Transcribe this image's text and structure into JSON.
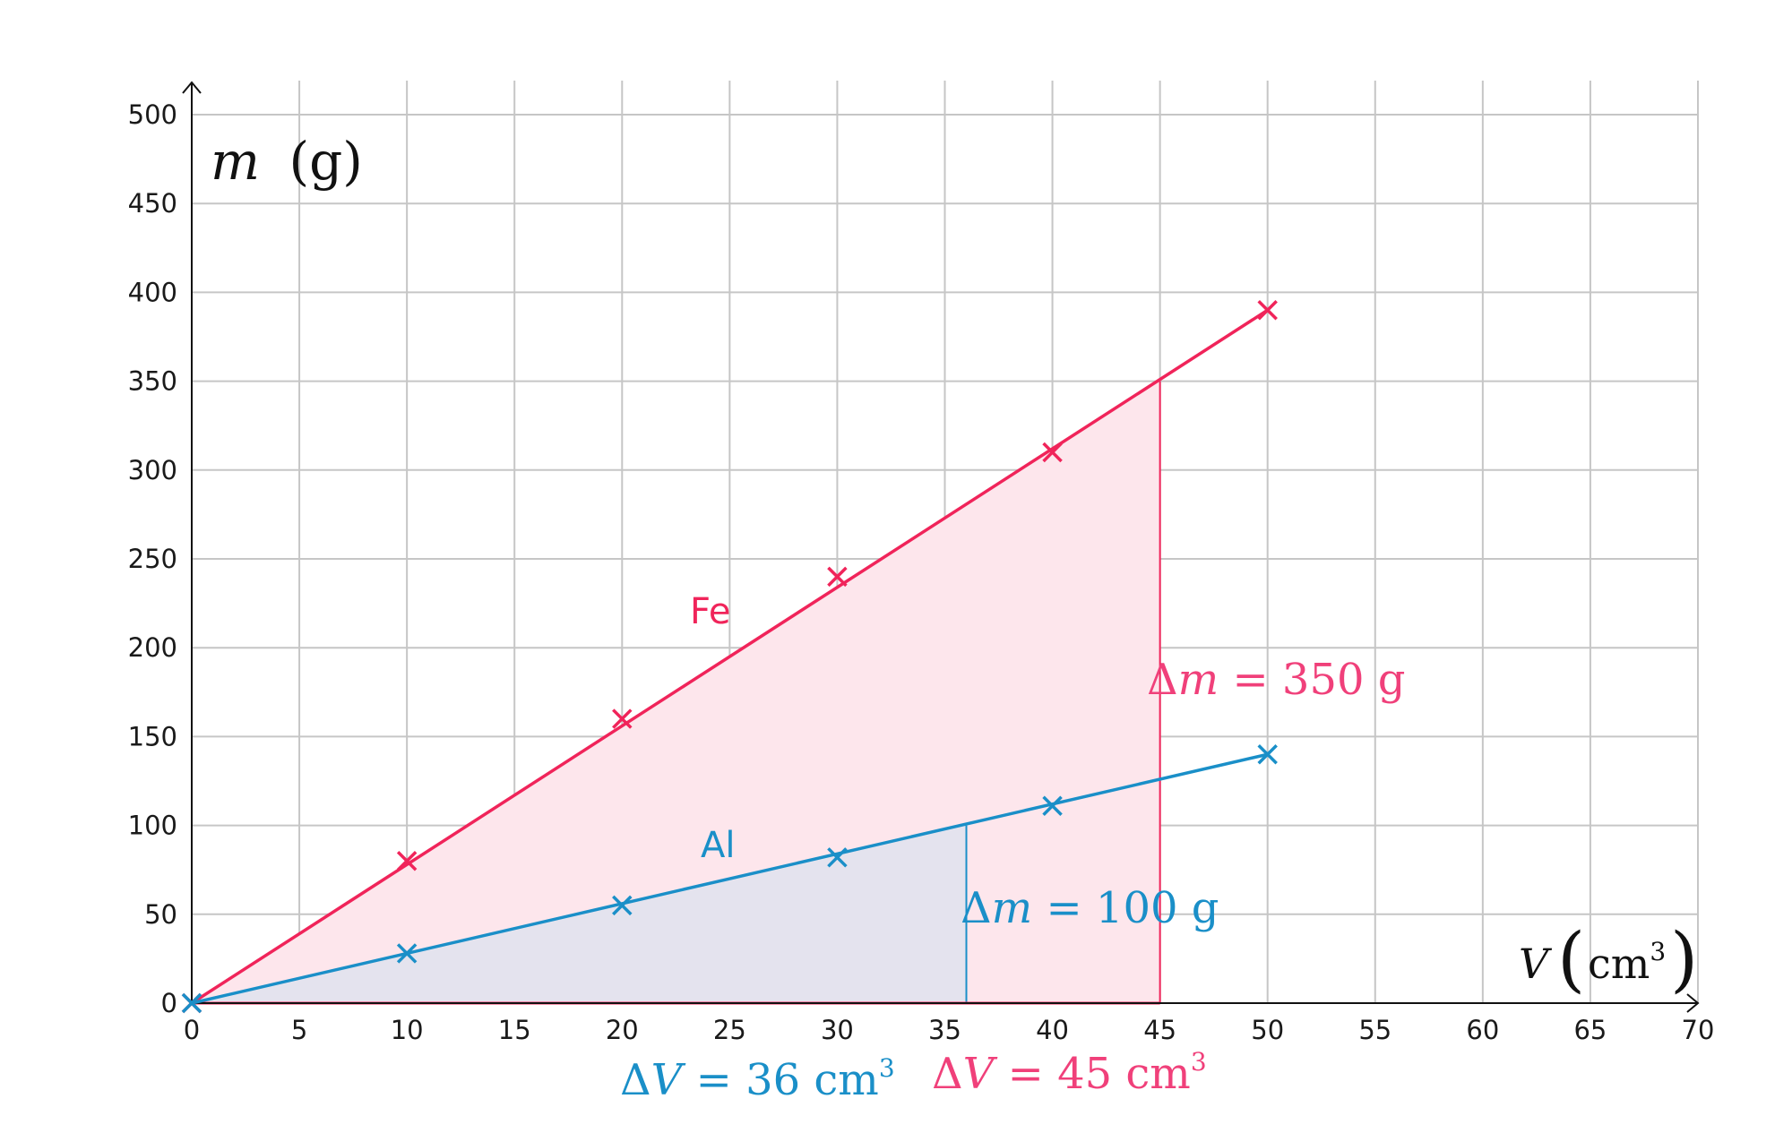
{
  "chart_data": {
    "type": "scatter",
    "xlim": [
      0,
      70
    ],
    "ylim": [
      0,
      500
    ],
    "x_ticks": [
      0,
      5,
      10,
      15,
      20,
      25,
      30,
      35,
      40,
      45,
      50,
      55,
      60,
      65,
      70
    ],
    "y_ticks": [
      0,
      50,
      100,
      150,
      200,
      250,
      300,
      350,
      400,
      450,
      500
    ],
    "grid": true,
    "ylabel_var": "m",
    "ylabel_unit": "(g)",
    "xlabel_var": "V",
    "xlabel_unit": "cm",
    "xlabel_unit_exp": "3",
    "series": [
      {
        "name": "Fe",
        "color": "#f0245a",
        "x": [
          0,
          10,
          20,
          30,
          40,
          50
        ],
        "y": [
          0,
          80,
          160,
          240,
          310,
          390
        ],
        "fit_line": {
          "x": [
            0,
            50
          ],
          "y": [
            0,
            390
          ]
        },
        "shaded_to_x": 45,
        "shaded_to_y": 350,
        "fill": "#fde6ec"
      },
      {
        "name": "Al",
        "color": "#1a8fc8",
        "x": [
          0,
          10,
          20,
          30,
          40,
          50
        ],
        "y": [
          0,
          28,
          55,
          82,
          111,
          140
        ],
        "fit_line": {
          "x": [
            0,
            50
          ],
          "y": [
            0,
            140
          ]
        },
        "shaded_to_x": 36,
        "shaded_to_y": 100,
        "fill": "#e4e3ee"
      }
    ],
    "annotations": {
      "fe_dm": {
        "prefix": "Δ",
        "var": "m",
        "rest": " = 350 g"
      },
      "fe_dv": {
        "prefix": "Δ",
        "var": "V",
        "rest": " = 45 cm",
        "exp": "3"
      },
      "al_dm": {
        "prefix": "Δ",
        "var": "m",
        "rest": " = 100 g"
      },
      "al_dv": {
        "prefix": "Δ",
        "var": "V",
        "rest": " = 36 cm",
        "exp": "3"
      }
    }
  }
}
